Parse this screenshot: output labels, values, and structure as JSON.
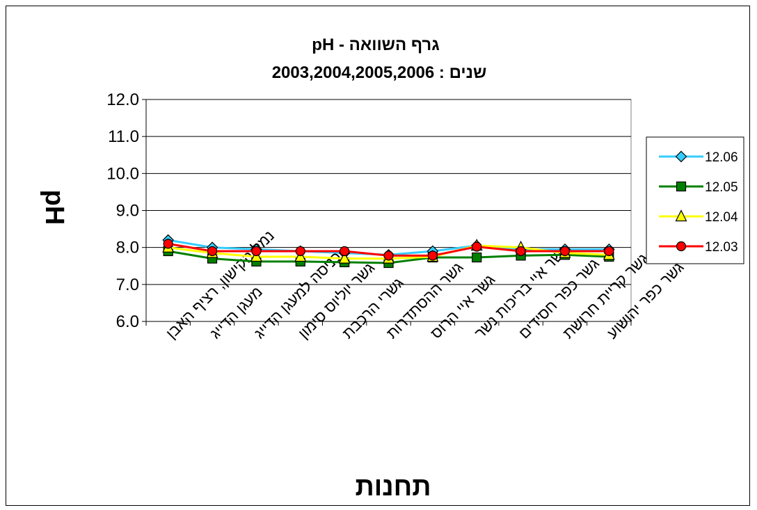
{
  "chart_data": {
    "type": "line",
    "title_line1": "גרף השוואה - pH",
    "title_line2": "שנים  :  2003,2004,2005,2006",
    "ylabel": "pH",
    "xlabel": "תחנות",
    "ylim": [
      6.0,
      12.0
    ],
    "yticks": [
      "12.0",
      "11.0",
      "10.0",
      "9.0",
      "8.0",
      "7.0",
      "6.0"
    ],
    "ytick_values": [
      12,
      11,
      10,
      9,
      8,
      7,
      6
    ],
    "grid": true,
    "legend_position": "right",
    "categories": [
      "נמל הקישון, רציף האבן",
      "מעגן הדייג",
      "כניסה למעגן הדייג",
      "גשר יוליוס סימון",
      "גשרי הרכבת",
      "גשר ההסתדרות",
      "גשר איי הרוס",
      "גשר איי בריכות נשר",
      "גשר כפר חסידים",
      "גשר קריית חרושת",
      "גשר כפר יהושוע"
    ],
    "series": [
      {
        "name": "12.06",
        "color": "#33ccff",
        "marker": "diamond",
        "marker_fill": "#33ccff",
        "values": [
          8.2,
          8.0,
          7.95,
          7.9,
          7.85,
          7.8,
          7.9,
          8.05,
          7.95,
          7.95,
          7.95
        ]
      },
      {
        "name": "12.05",
        "color": "#008000",
        "marker": "square",
        "marker_fill": "#008000",
        "values": [
          7.9,
          7.7,
          7.62,
          7.62,
          7.6,
          7.58,
          7.73,
          7.73,
          7.78,
          7.8,
          7.75
        ]
      },
      {
        "name": "12.04",
        "color": "#ffff00",
        "marker": "triangle",
        "marker_fill": "#ffff00",
        "values": [
          8.0,
          7.85,
          7.75,
          7.75,
          7.7,
          7.7,
          7.75,
          8.05,
          8.0,
          7.85,
          7.8
        ]
      },
      {
        "name": "12.03",
        "color": "#ff0000",
        "marker": "circle",
        "marker_fill": "#ff0000",
        "values": [
          8.1,
          7.9,
          7.9,
          7.9,
          7.9,
          7.78,
          7.78,
          8.02,
          7.9,
          7.9,
          7.9
        ]
      }
    ]
  }
}
